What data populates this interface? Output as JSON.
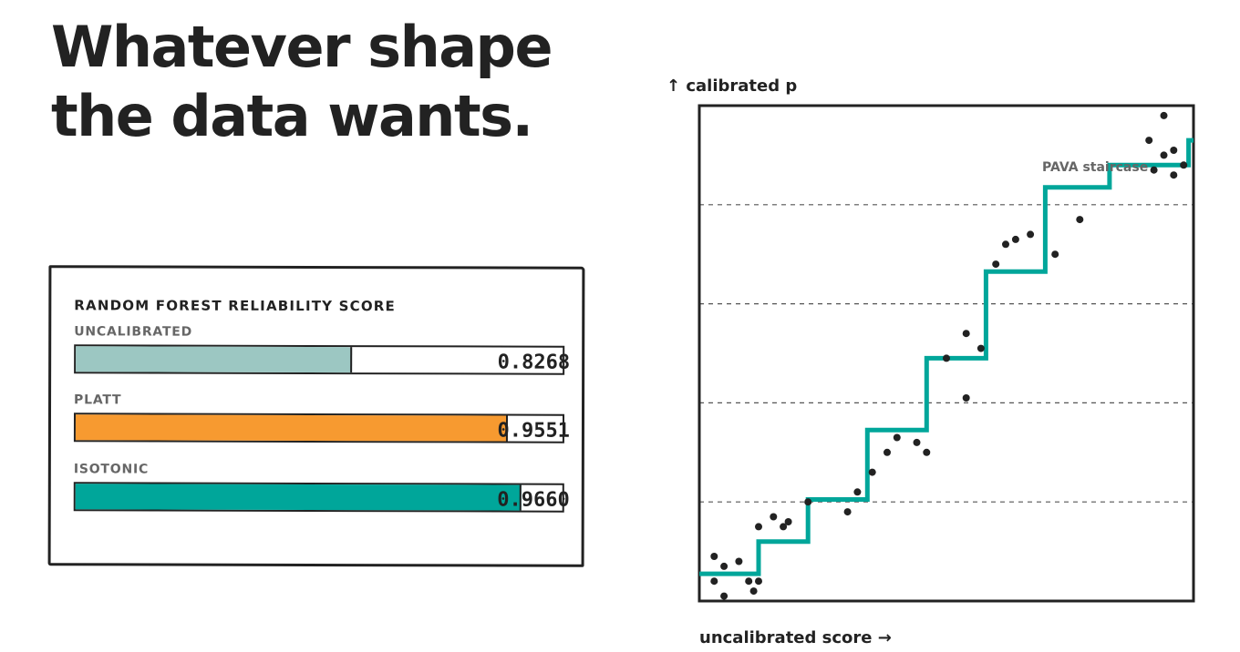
{
  "headline": {
    "line1": "Whatever shape",
    "line2": "the data wants."
  },
  "reliability_card": {
    "title": "RANDOM FOREST RELIABILITY SCORE",
    "scores": [
      {
        "label": "UNCALIBRATED",
        "value": 0.8268,
        "display": "0.8268",
        "color": "#9cc7c2"
      },
      {
        "label": "PLATT",
        "value": 0.9551,
        "display": "0.9551",
        "color": "#f79a30"
      },
      {
        "label": "ISOTONIC",
        "value": 0.966,
        "display": "0.9660",
        "color": "#00a69a"
      }
    ]
  },
  "chart_data": {
    "type": "scatter",
    "title": "",
    "xlabel": "uncalibrated score →",
    "ylabel": "↑ calibrated p",
    "xlim": [
      0,
      1
    ],
    "ylim": [
      0,
      1
    ],
    "grid": "horizontal dashed",
    "grid_y": [
      0.2,
      0.4,
      0.6,
      0.8
    ],
    "annotation": "PAVA staircase",
    "colors": {
      "step": "#00a69a",
      "points": "#222222",
      "grid": "#555555"
    },
    "series": [
      {
        "type": "step",
        "x": [
          0.0,
          0.12,
          0.12,
          0.22,
          0.22,
          0.34,
          0.34,
          0.46,
          0.46,
          0.58,
          0.58,
          0.7,
          0.7,
          0.83,
          0.83,
          0.99,
          0.99,
          1.0
        ],
        "y": [
          0.055,
          0.055,
          0.12,
          0.12,
          0.205,
          0.205,
          0.345,
          0.345,
          0.49,
          0.49,
          0.665,
          0.665,
          0.835,
          0.835,
          0.88,
          0.88,
          0.93,
          0.93
        ]
      },
      {
        "type": "scatter",
        "x": [
          0.03,
          0.05,
          0.03,
          0.08,
          0.1,
          0.12,
          0.11,
          0.05,
          0.12,
          0.15,
          0.17,
          0.18,
          0.22,
          0.32,
          0.3,
          0.35,
          0.4,
          0.38,
          0.46,
          0.44,
          0.54,
          0.57,
          0.5,
          0.54,
          0.6,
          0.62,
          0.64,
          0.67,
          0.77,
          0.72,
          0.94,
          0.91,
          0.94,
          0.96,
          0.98,
          0.92,
          0.96
        ],
        "y": [
          0.09,
          0.07,
          0.04,
          0.08,
          0.04,
          0.04,
          0.02,
          0.01,
          0.15,
          0.17,
          0.15,
          0.16,
          0.2,
          0.22,
          0.18,
          0.26,
          0.33,
          0.3,
          0.3,
          0.32,
          0.41,
          0.51,
          0.49,
          0.54,
          0.68,
          0.72,
          0.73,
          0.74,
          0.77,
          0.7,
          0.98,
          0.93,
          0.9,
          0.91,
          0.88,
          0.87,
          0.86
        ]
      }
    ]
  }
}
